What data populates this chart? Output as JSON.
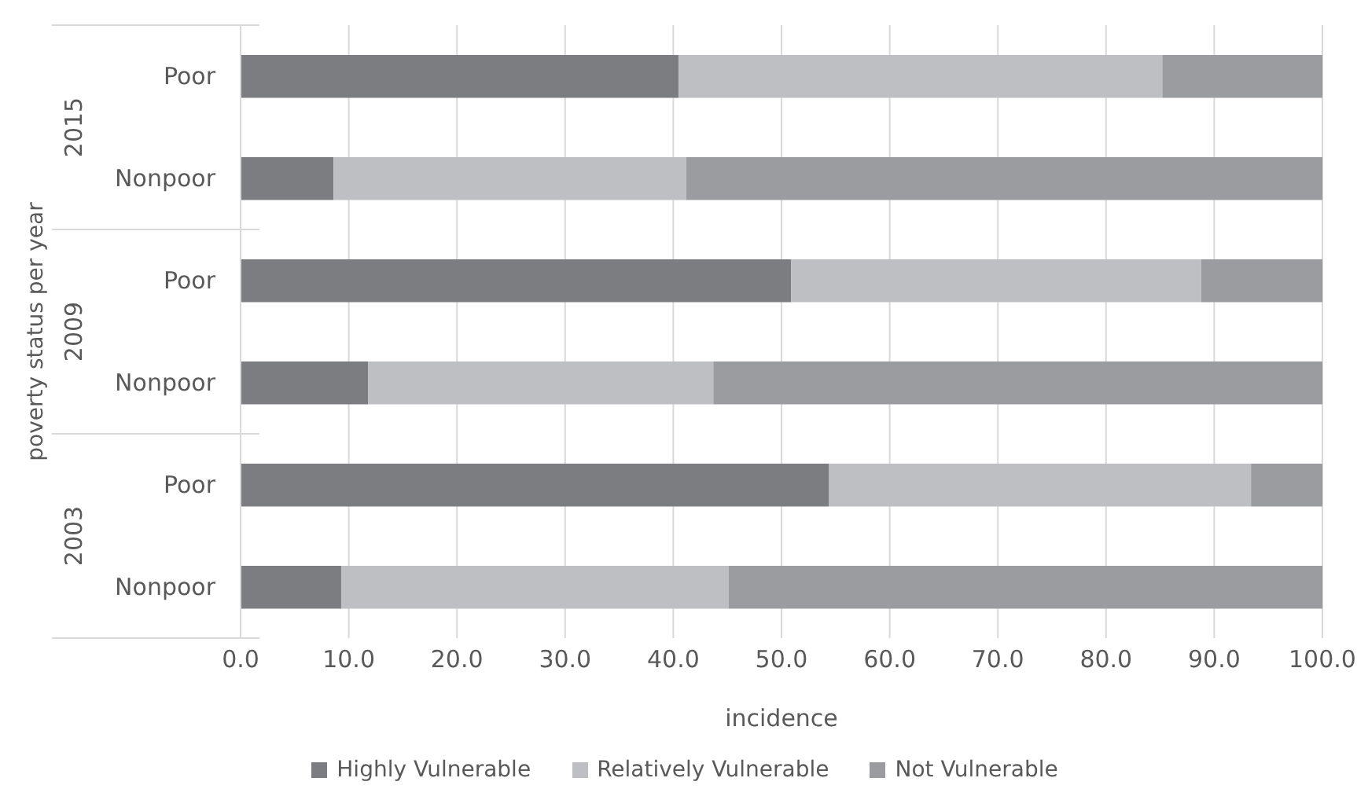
{
  "chart_data": {
    "type": "bar",
    "orientation": "horizontal",
    "stacked": true,
    "categories": [
      "Poor",
      "Nonpoor",
      "Poor",
      "Nonpoor",
      "Poor",
      "Nonpoor"
    ],
    "annotations": [
      "2015",
      "2009",
      "2003"
    ],
    "series": [
      {
        "name": "Highly Vulnerable",
        "color": "#7c7d81",
        "values": [
          40.5,
          8.6,
          50.9,
          11.8,
          54.4,
          9.3
        ]
      },
      {
        "name": "Relatively Vulnerable",
        "color": "#bebfc2",
        "values": [
          44.7,
          32.6,
          37.9,
          31.9,
          39.0,
          35.8
        ]
      },
      {
        "name": "Not Vulnerable",
        "color": "#9b9c9f",
        "values": [
          14.8,
          58.8,
          11.2,
          56.3,
          6.6,
          54.9
        ]
      }
    ],
    "xlabel": "incidence",
    "ylabel": "poverty status per year",
    "xlim": [
      0,
      100
    ],
    "xticks": [
      {
        "value": 0,
        "label": "0.0"
      },
      {
        "value": 10,
        "label": "10.0"
      },
      {
        "value": 20,
        "label": "20.0"
      },
      {
        "value": 30,
        "label": "30.0"
      },
      {
        "value": 40,
        "label": "40.0"
      },
      {
        "value": 50,
        "label": "50.0"
      },
      {
        "value": 60,
        "label": "60.0"
      },
      {
        "value": 70,
        "label": "70.0"
      },
      {
        "value": 80,
        "label": "80.0"
      },
      {
        "value": 90,
        "label": "90.0"
      },
      {
        "value": 100,
        "label": "100.0"
      }
    ],
    "grid": "x",
    "legend": "bottom"
  }
}
